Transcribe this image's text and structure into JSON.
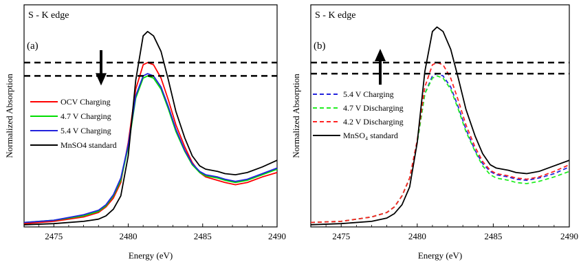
{
  "chart_data": [
    {
      "type": "line",
      "panel_label": "(a)",
      "corner_text": "S - K edge",
      "xlabel": "Energy (eV)",
      "ylabel": "Normalized Absorption",
      "xlim": [
        2473,
        2490
      ],
      "ylim": [
        0,
        1.0
      ],
      "xticks": [
        "2475",
        "2480",
        "2485",
        "2490"
      ],
      "yticks": [],
      "grid": false,
      "legend_position": "left",
      "arrow_direction": "down",
      "reference_lines": [
        0.74,
        0.68
      ],
      "series": [
        {
          "name": "OCV Charging",
          "color": "#ff0000",
          "dash": "solid",
          "x": [
            2473,
            2475,
            2477,
            2478,
            2478.5,
            2479,
            2479.5,
            2480,
            2480.5,
            2481,
            2481.3,
            2481.7,
            2482.2,
            2482.7,
            2483.2,
            2483.8,
            2484.3,
            2484.8,
            2485.2,
            2486,
            2486.5,
            2487.2,
            2488,
            2489,
            2490
          ],
          "y": [
            0.015,
            0.025,
            0.045,
            0.065,
            0.09,
            0.13,
            0.2,
            0.38,
            0.62,
            0.73,
            0.74,
            0.73,
            0.67,
            0.57,
            0.46,
            0.36,
            0.29,
            0.245,
            0.225,
            0.21,
            0.2,
            0.19,
            0.2,
            0.225,
            0.245
          ]
        },
        {
          "name": "4.7 V Charging",
          "color": "#00dd00",
          "dash": "solid",
          "x": [
            2473,
            2475,
            2477,
            2478,
            2478.5,
            2479,
            2479.5,
            2480,
            2480.5,
            2481,
            2481.3,
            2481.7,
            2482.2,
            2482.7,
            2483.2,
            2483.8,
            2484.3,
            2484.8,
            2485.2,
            2486,
            2486.5,
            2487.2,
            2488,
            2489,
            2490
          ],
          "y": [
            0.02,
            0.03,
            0.05,
            0.07,
            0.095,
            0.14,
            0.21,
            0.36,
            0.58,
            0.67,
            0.68,
            0.67,
            0.62,
            0.53,
            0.43,
            0.34,
            0.28,
            0.245,
            0.23,
            0.22,
            0.21,
            0.2,
            0.21,
            0.235,
            0.26
          ]
        },
        {
          "name": "5.4 V Charging",
          "color": "#2222dd",
          "dash": "solid",
          "x": [
            2473,
            2475,
            2477,
            2478,
            2478.5,
            2479,
            2479.5,
            2480,
            2480.5,
            2481,
            2481.3,
            2481.7,
            2482.2,
            2482.7,
            2483.2,
            2483.8,
            2484.3,
            2484.8,
            2485.2,
            2486,
            2486.5,
            2487.2,
            2488,
            2489,
            2490
          ],
          "y": [
            0.02,
            0.03,
            0.055,
            0.075,
            0.1,
            0.145,
            0.22,
            0.37,
            0.59,
            0.68,
            0.69,
            0.68,
            0.63,
            0.54,
            0.44,
            0.345,
            0.285,
            0.25,
            0.235,
            0.225,
            0.215,
            0.205,
            0.215,
            0.24,
            0.265
          ]
        },
        {
          "name": "MnSO4 standard",
          "color": "#000000",
          "dash": "solid",
          "x": [
            2473,
            2475,
            2477,
            2478,
            2478.5,
            2479,
            2479.5,
            2480,
            2480.5,
            2481,
            2481.3,
            2481.7,
            2482.2,
            2482.7,
            2483.2,
            2483.8,
            2484.3,
            2484.8,
            2485.2,
            2486,
            2486.5,
            2487.2,
            2488,
            2489,
            2490
          ],
          "y": [
            0.01,
            0.015,
            0.025,
            0.035,
            0.05,
            0.08,
            0.14,
            0.32,
            0.66,
            0.86,
            0.88,
            0.86,
            0.79,
            0.66,
            0.52,
            0.4,
            0.32,
            0.275,
            0.26,
            0.25,
            0.24,
            0.235,
            0.245,
            0.27,
            0.3
          ]
        }
      ]
    },
    {
      "type": "line",
      "panel_label": "(b)",
      "corner_text": "S - K edge",
      "xlabel": "Energy (eV)",
      "ylabel": "Normalized Absorption",
      "xlim": [
        2473,
        2490
      ],
      "ylim": [
        0,
        1.0
      ],
      "xticks": [
        "2475",
        "2480",
        "2485",
        "2490"
      ],
      "yticks": [],
      "grid": false,
      "legend_position": "left",
      "arrow_direction": "up",
      "reference_lines": [
        0.74,
        0.69
      ],
      "series": [
        {
          "name": "5.4 V Charging",
          "color": "#2222dd",
          "dash": "dashed",
          "x": [
            2473,
            2475,
            2477,
            2478,
            2478.5,
            2479,
            2479.5,
            2480,
            2480.5,
            2481,
            2481.3,
            2481.7,
            2482.2,
            2482.7,
            2483.2,
            2483.8,
            2484.3,
            2484.8,
            2485.2,
            2486,
            2486.5,
            2487.2,
            2488,
            2489,
            2490
          ],
          "y": [
            0.02,
            0.025,
            0.045,
            0.065,
            0.09,
            0.14,
            0.22,
            0.38,
            0.6,
            0.68,
            0.69,
            0.68,
            0.63,
            0.54,
            0.44,
            0.345,
            0.285,
            0.25,
            0.235,
            0.225,
            0.215,
            0.21,
            0.22,
            0.24,
            0.27
          ]
        },
        {
          "name": "4.7 V Discharging",
          "color": "#22ee22",
          "dash": "dashed",
          "x": [
            2473,
            2475,
            2477,
            2478,
            2478.5,
            2479,
            2479.5,
            2480,
            2480.5,
            2481,
            2481.3,
            2481.7,
            2482.2,
            2482.7,
            2483.2,
            2483.8,
            2484.3,
            2484.8,
            2485.2,
            2486,
            2486.5,
            2487.2,
            2488,
            2489,
            2490
          ],
          "y": [
            0.02,
            0.025,
            0.045,
            0.065,
            0.09,
            0.14,
            0.22,
            0.38,
            0.6,
            0.67,
            0.68,
            0.67,
            0.62,
            0.53,
            0.43,
            0.34,
            0.275,
            0.235,
            0.22,
            0.21,
            0.2,
            0.195,
            0.205,
            0.225,
            0.25
          ]
        },
        {
          "name": "4.2 V Discharging",
          "color": "#ff2222",
          "dash": "dashed",
          "x": [
            2473,
            2475,
            2477,
            2478,
            2478.5,
            2479,
            2479.5,
            2480,
            2480.5,
            2481,
            2481.3,
            2481.7,
            2482.2,
            2482.7,
            2483.2,
            2483.8,
            2484.3,
            2484.8,
            2485.2,
            2486,
            2486.5,
            2487.2,
            2488,
            2489,
            2490
          ],
          "y": [
            0.02,
            0.025,
            0.045,
            0.065,
            0.09,
            0.14,
            0.22,
            0.39,
            0.63,
            0.73,
            0.74,
            0.73,
            0.67,
            0.57,
            0.46,
            0.36,
            0.295,
            0.255,
            0.24,
            0.23,
            0.22,
            0.215,
            0.225,
            0.25,
            0.28
          ]
        },
        {
          "name": "MnSO₄ standard",
          "color": "#000000",
          "dash": "solid",
          "x": [
            2473,
            2475,
            2477,
            2478,
            2478.5,
            2479,
            2479.5,
            2480,
            2480.5,
            2481,
            2481.3,
            2481.7,
            2482.2,
            2482.7,
            2483.2,
            2483.8,
            2484.3,
            2484.8,
            2485.2,
            2486,
            2486.5,
            2487.2,
            2488,
            2489,
            2490
          ],
          "y": [
            0.01,
            0.015,
            0.025,
            0.04,
            0.06,
            0.1,
            0.18,
            0.38,
            0.7,
            0.88,
            0.9,
            0.88,
            0.8,
            0.67,
            0.53,
            0.41,
            0.33,
            0.28,
            0.265,
            0.255,
            0.245,
            0.24,
            0.25,
            0.275,
            0.3
          ]
        }
      ]
    }
  ]
}
